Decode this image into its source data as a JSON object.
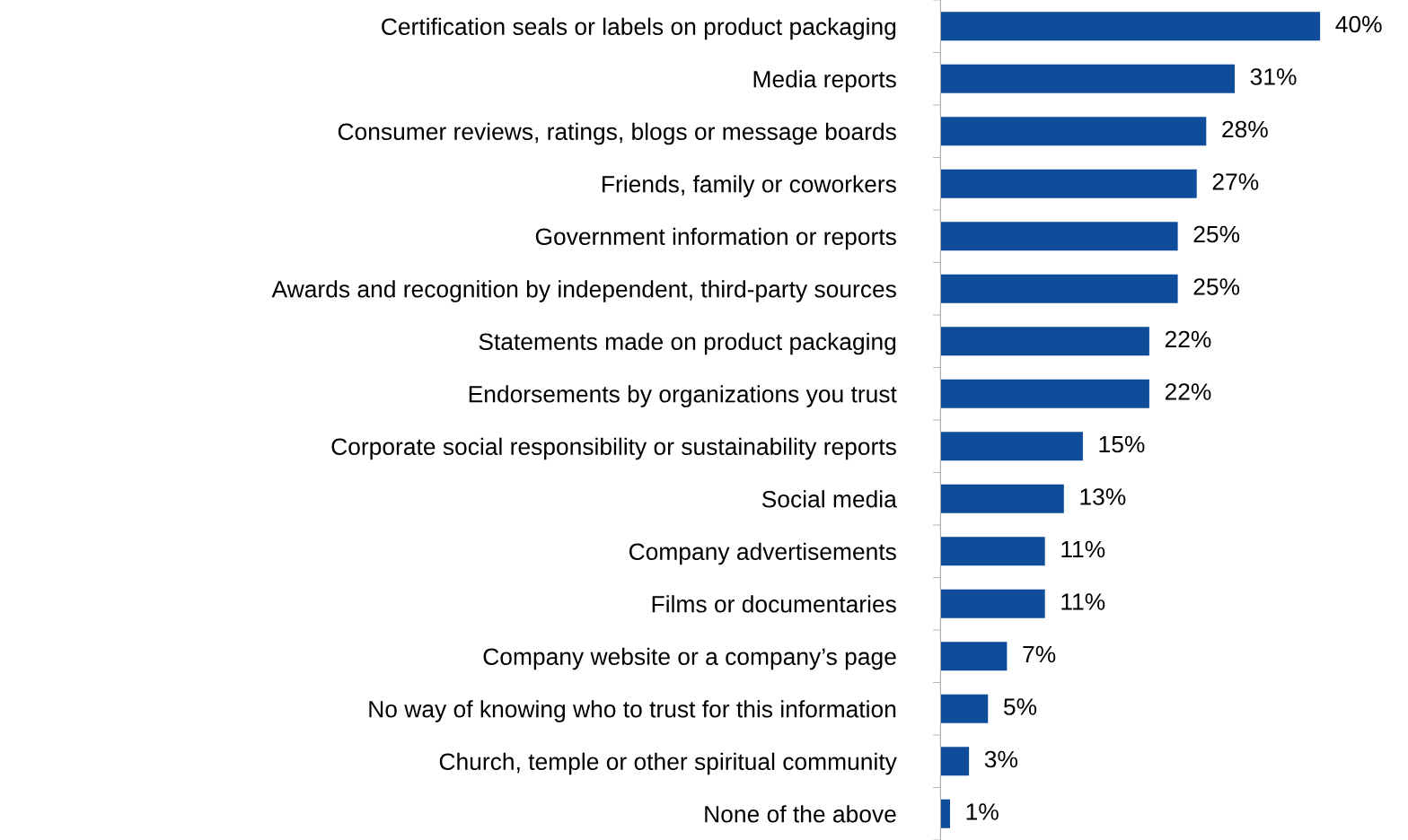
{
  "chart_data": {
    "type": "bar",
    "orientation": "horizontal",
    "categories": [
      "Certification seals or labels on product packaging",
      "Media reports",
      "Consumer reviews, ratings, blogs or message boards",
      "Friends, family or coworkers",
      "Government information or reports",
      "Awards and recognition by independent, third-party sources",
      "Statements made on product packaging",
      "Endorsements by organizations you trust",
      "Corporate social responsibility or sustainability reports",
      "Social media",
      "Company advertisements",
      "Films or documentaries",
      "Company website or a company’s page",
      "No way of knowing who to trust for this information",
      "Church, temple or other spiritual community",
      "None of the above"
    ],
    "values": [
      40,
      31,
      28,
      27,
      25,
      25,
      22,
      22,
      15,
      13,
      11,
      11,
      7,
      5,
      3,
      1
    ],
    "value_labels": [
      "40%",
      "31%",
      "28%",
      "27%",
      "25%",
      "25%",
      "22%",
      "22%",
      "15%",
      "13%",
      "11%",
      "11%",
      "7%",
      "5%",
      "3%",
      "1%"
    ],
    "color": "#0f4c9a",
    "grid": false,
    "legend": false
  }
}
